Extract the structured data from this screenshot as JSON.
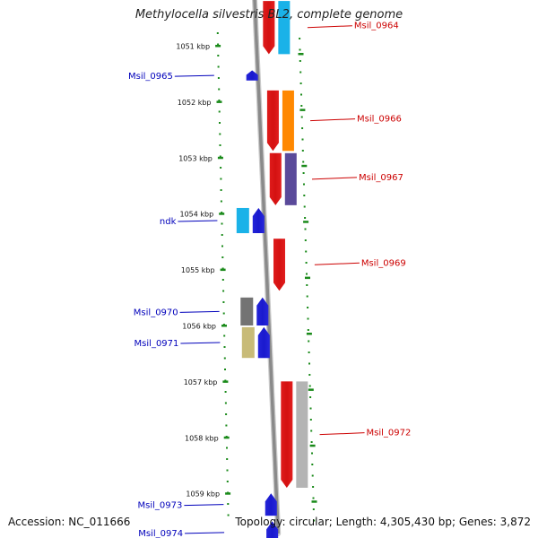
{
  "header": {
    "title": "Methylocella silvestris BL2, complete genome"
  },
  "scale": {
    "unit": "kbp",
    "ticks": [
      {
        "label": "1051 kbp",
        "kbp": 1051
      },
      {
        "label": "1052 kbp",
        "kbp": 1052
      },
      {
        "label": "1053 kbp",
        "kbp": 1053
      },
      {
        "label": "1054 kbp",
        "kbp": 1054
      },
      {
        "label": "1055 kbp",
        "kbp": 1055
      },
      {
        "label": "1056 kbp",
        "kbp": 1056
      },
      {
        "label": "1057 kbp",
        "kbp": 1057
      },
      {
        "label": "1058 kbp",
        "kbp": 1058
      },
      {
        "label": "1059 kbp",
        "kbp": 1059
      }
    ]
  },
  "genes": [
    {
      "name": "Msil_0964",
      "strand": "forward",
      "start_kbp": 1050.2,
      "end_kbp": 1051.15,
      "color": "#ee0000",
      "cog_color": "#1ab2e8"
    },
    {
      "name": "Msil_0965",
      "strand": "reverse",
      "start_kbp": 1051.44,
      "end_kbp": 1051.62,
      "color": "#0a0ae6",
      "cog_color": null
    },
    {
      "name": "Msil_0966",
      "strand": "forward",
      "start_kbp": 1051.8,
      "end_kbp": 1052.88,
      "color": "#ee0000",
      "cog_color": "#ff8800"
    },
    {
      "name": "Msil_0967",
      "strand": "forward",
      "start_kbp": 1052.92,
      "end_kbp": 1053.85,
      "color": "#ee0000",
      "cog_color": "#5a4a9a"
    },
    {
      "name": "ndk",
      "strand": "reverse",
      "start_kbp": 1053.9,
      "end_kbp": 1054.35,
      "color": "#0a0ae6",
      "cog_color": "#1ab2e8"
    },
    {
      "name": "Msil_0969",
      "strand": "forward",
      "start_kbp": 1054.45,
      "end_kbp": 1055.38,
      "color": "#ee0000",
      "cog_color": null
    },
    {
      "name": "Msil_0970",
      "strand": "reverse",
      "start_kbp": 1055.5,
      "end_kbp": 1056.0,
      "color": "#0a0ae6",
      "cog_color": "#737373"
    },
    {
      "name": "Msil_0971",
      "strand": "reverse",
      "start_kbp": 1056.03,
      "end_kbp": 1056.58,
      "color": "#0a0ae6",
      "cog_color": "#c8bb78"
    },
    {
      "name": "Msil_0972",
      "strand": "forward",
      "start_kbp": 1057.0,
      "end_kbp": 1058.9,
      "color": "#ee0000",
      "cog_color": "#b4b4b4"
    },
    {
      "name": "Msil_0973",
      "strand": "reverse",
      "start_kbp": 1059.0,
      "end_kbp": 1059.4,
      "color": "#0a0ae6",
      "cog_color": null
    },
    {
      "name": "Msil_0974",
      "strand": "reverse",
      "start_kbp": 1059.5,
      "end_kbp": 1059.9,
      "color": "#0a0ae6",
      "cog_color": null
    }
  ],
  "footer": {
    "accession": "Accession: NC_011666",
    "summary": "Topology: circular; Length: 4,305,430 bp; Genes: 3,872"
  },
  "colors": {
    "backbone": "#8a8a8a",
    "tick": "#1a8a1a",
    "forward_label": "#cc0000",
    "reverse_label": "#0000bb"
  }
}
